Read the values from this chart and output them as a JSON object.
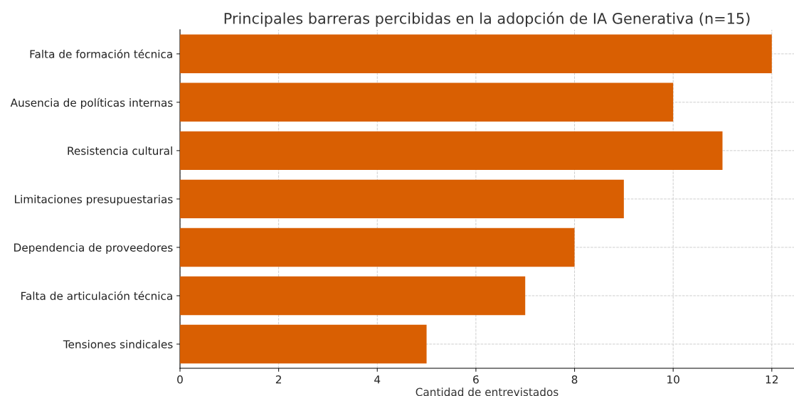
{
  "chart_data": {
    "type": "bar",
    "orientation": "horizontal",
    "title": "Principales barreras percibidas en la adopción de IA Generativa (n=15)",
    "xlabel": "Cantidad de entrevistados",
    "categories": [
      "Falta de formación técnica",
      "Ausencia de políticas internas",
      "Resistencia cultural",
      "Limitaciones presupuestarias",
      "Dependencia de proveedores",
      "Falta de articulación técnica",
      "Tensiones sindicales"
    ],
    "values": [
      12,
      10,
      11,
      9,
      8,
      7,
      5
    ],
    "color": "#d95f02",
    "xlim": [
      0,
      12.45
    ],
    "xticks": [
      0,
      2,
      4,
      6,
      8,
      10,
      12
    ],
    "grid": true
  }
}
